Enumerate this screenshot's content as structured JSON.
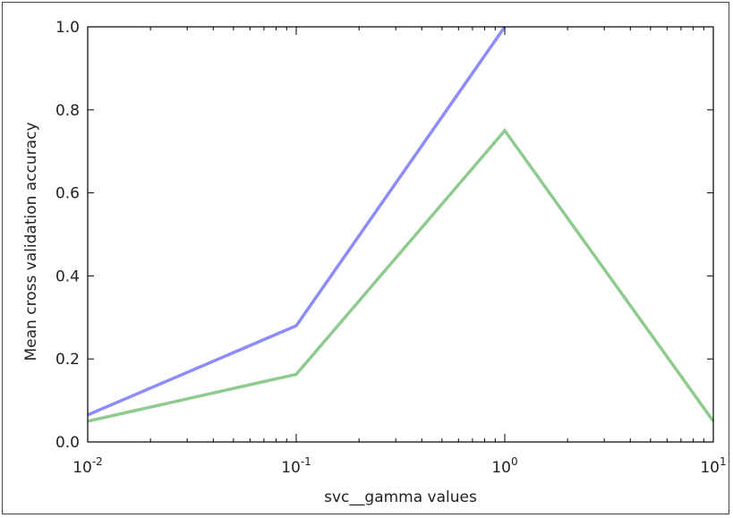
{
  "chart_data": {
    "type": "line",
    "xlabel": "svc__gamma values",
    "ylabel": "Mean cross validation accuracy",
    "xscale": "log",
    "xlim": [
      0.01,
      10
    ],
    "ylim": [
      0.0,
      1.0
    ],
    "x_ticks": [
      {
        "value": 0.01,
        "base": "10",
        "exp": "-2"
      },
      {
        "value": 0.1,
        "base": "10",
        "exp": "-1"
      },
      {
        "value": 1,
        "base": "10",
        "exp": "0"
      },
      {
        "value": 10,
        "base": "10",
        "exp": "1"
      }
    ],
    "y_ticks": [
      "0.0",
      "0.2",
      "0.4",
      "0.6",
      "0.8",
      "1.0"
    ],
    "grid": false,
    "x": [
      0.01,
      0.1,
      1,
      10
    ],
    "series": [
      {
        "color": "#8c8cff",
        "values": [
          0.065,
          0.28,
          1.0,
          null
        ]
      },
      {
        "color": "#8fca8f",
        "values": [
          0.05,
          0.163,
          0.75,
          0.05
        ]
      }
    ]
  }
}
